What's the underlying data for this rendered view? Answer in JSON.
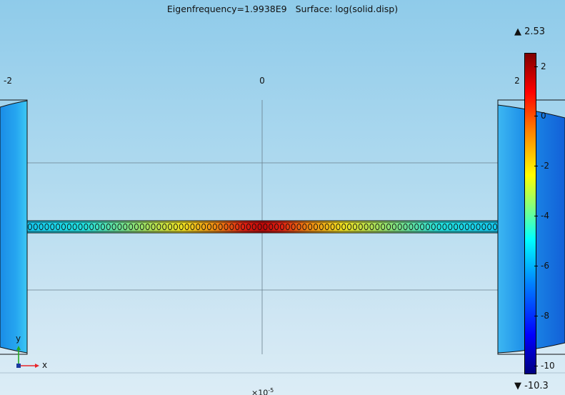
{
  "header": {
    "eigenfrequency": "Eigenfrequency=1.9938E9",
    "surface": "Surface: log(solid.disp)"
  },
  "x_axis": {
    "ticks": [
      "-2",
      "0",
      "2"
    ],
    "exponent_base": "×10",
    "exponent_power": "-5"
  },
  "colorbar": {
    "max_label": "▲ 2.53",
    "min_label": "▼ -10.3",
    "ticks": [
      "2",
      "0",
      "-2",
      "-4",
      "-6",
      "-8",
      "-10"
    ],
    "colormap": "rainbow"
  },
  "axes_indicator": {
    "x_label": "x",
    "y_label": "y",
    "x_color": "#e8262b",
    "y_color": "#22aa22"
  },
  "beam": {
    "cell_glyph": "0"
  }
}
